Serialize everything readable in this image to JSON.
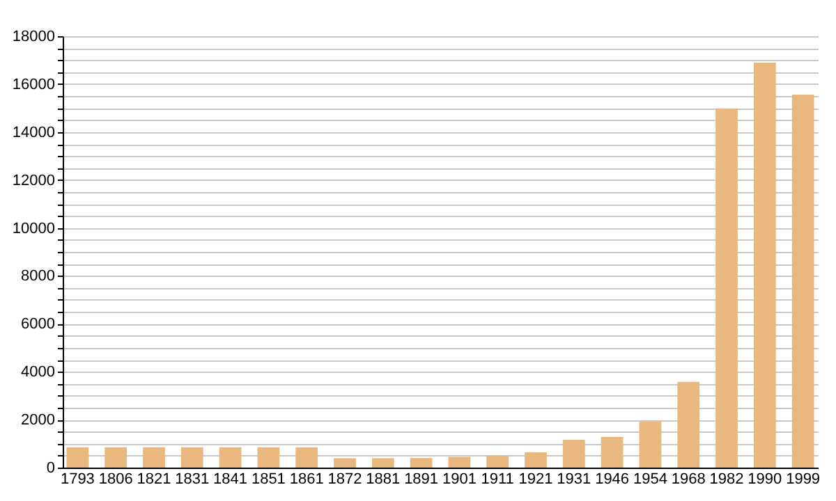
{
  "chart_data": {
    "type": "bar",
    "categories": [
      "1793",
      "1806",
      "1821",
      "1831",
      "1841",
      "1851",
      "1861",
      "1872",
      "1881",
      "1891",
      "1901",
      "1911",
      "1921",
      "1931",
      "1946",
      "1954",
      "1968",
      "1982",
      "1990",
      "1999"
    ],
    "values": [
      850,
      850,
      850,
      850,
      850,
      850,
      850,
      390,
      390,
      400,
      450,
      500,
      640,
      1160,
      1280,
      1920,
      3580,
      14980,
      16900,
      15560
    ],
    "color": "#e8b87e",
    "ylim": [
      0,
      18000
    ],
    "yticks": [
      0,
      {
        "value": 500,
        "label": null
      },
      {
        "value": 1000,
        "label": null
      },
      {
        "value": 1500,
        "label": null
      },
      2000,
      {
        "value": 2500,
        "label": null
      },
      {
        "value": 3000,
        "label": null
      },
      {
        "value": 3500,
        "label": null
      },
      4000,
      {
        "value": 4500,
        "label": null
      },
      {
        "value": 5000,
        "label": null
      },
      {
        "value": 5500,
        "label": null
      },
      6000,
      {
        "value": 6500,
        "label": null
      },
      {
        "value": 7000,
        "label": null
      },
      {
        "value": 7500,
        "label": null
      },
      8000,
      {
        "value": 8500,
        "label": null
      },
      {
        "value": 9000,
        "label": null
      },
      {
        "value": 9500,
        "label": null
      },
      10000,
      {
        "value": 10500,
        "label": null
      },
      {
        "value": 11000,
        "label": null
      },
      {
        "value": 11500,
        "label": null
      },
      12000,
      {
        "value": 12500,
        "label": null
      },
      {
        "value": 13000,
        "label": null
      },
      {
        "value": 13500,
        "label": null
      },
      14000,
      {
        "value": 14500,
        "label": null
      },
      {
        "value": 15000,
        "label": null
      },
      {
        "value": 15500,
        "label": null
      },
      16000,
      {
        "value": 16500,
        "label": null
      },
      {
        "value": 17000,
        "label": null
      },
      {
        "value": 17500,
        "label": null
      },
      18000
    ],
    "grid": "y"
  }
}
